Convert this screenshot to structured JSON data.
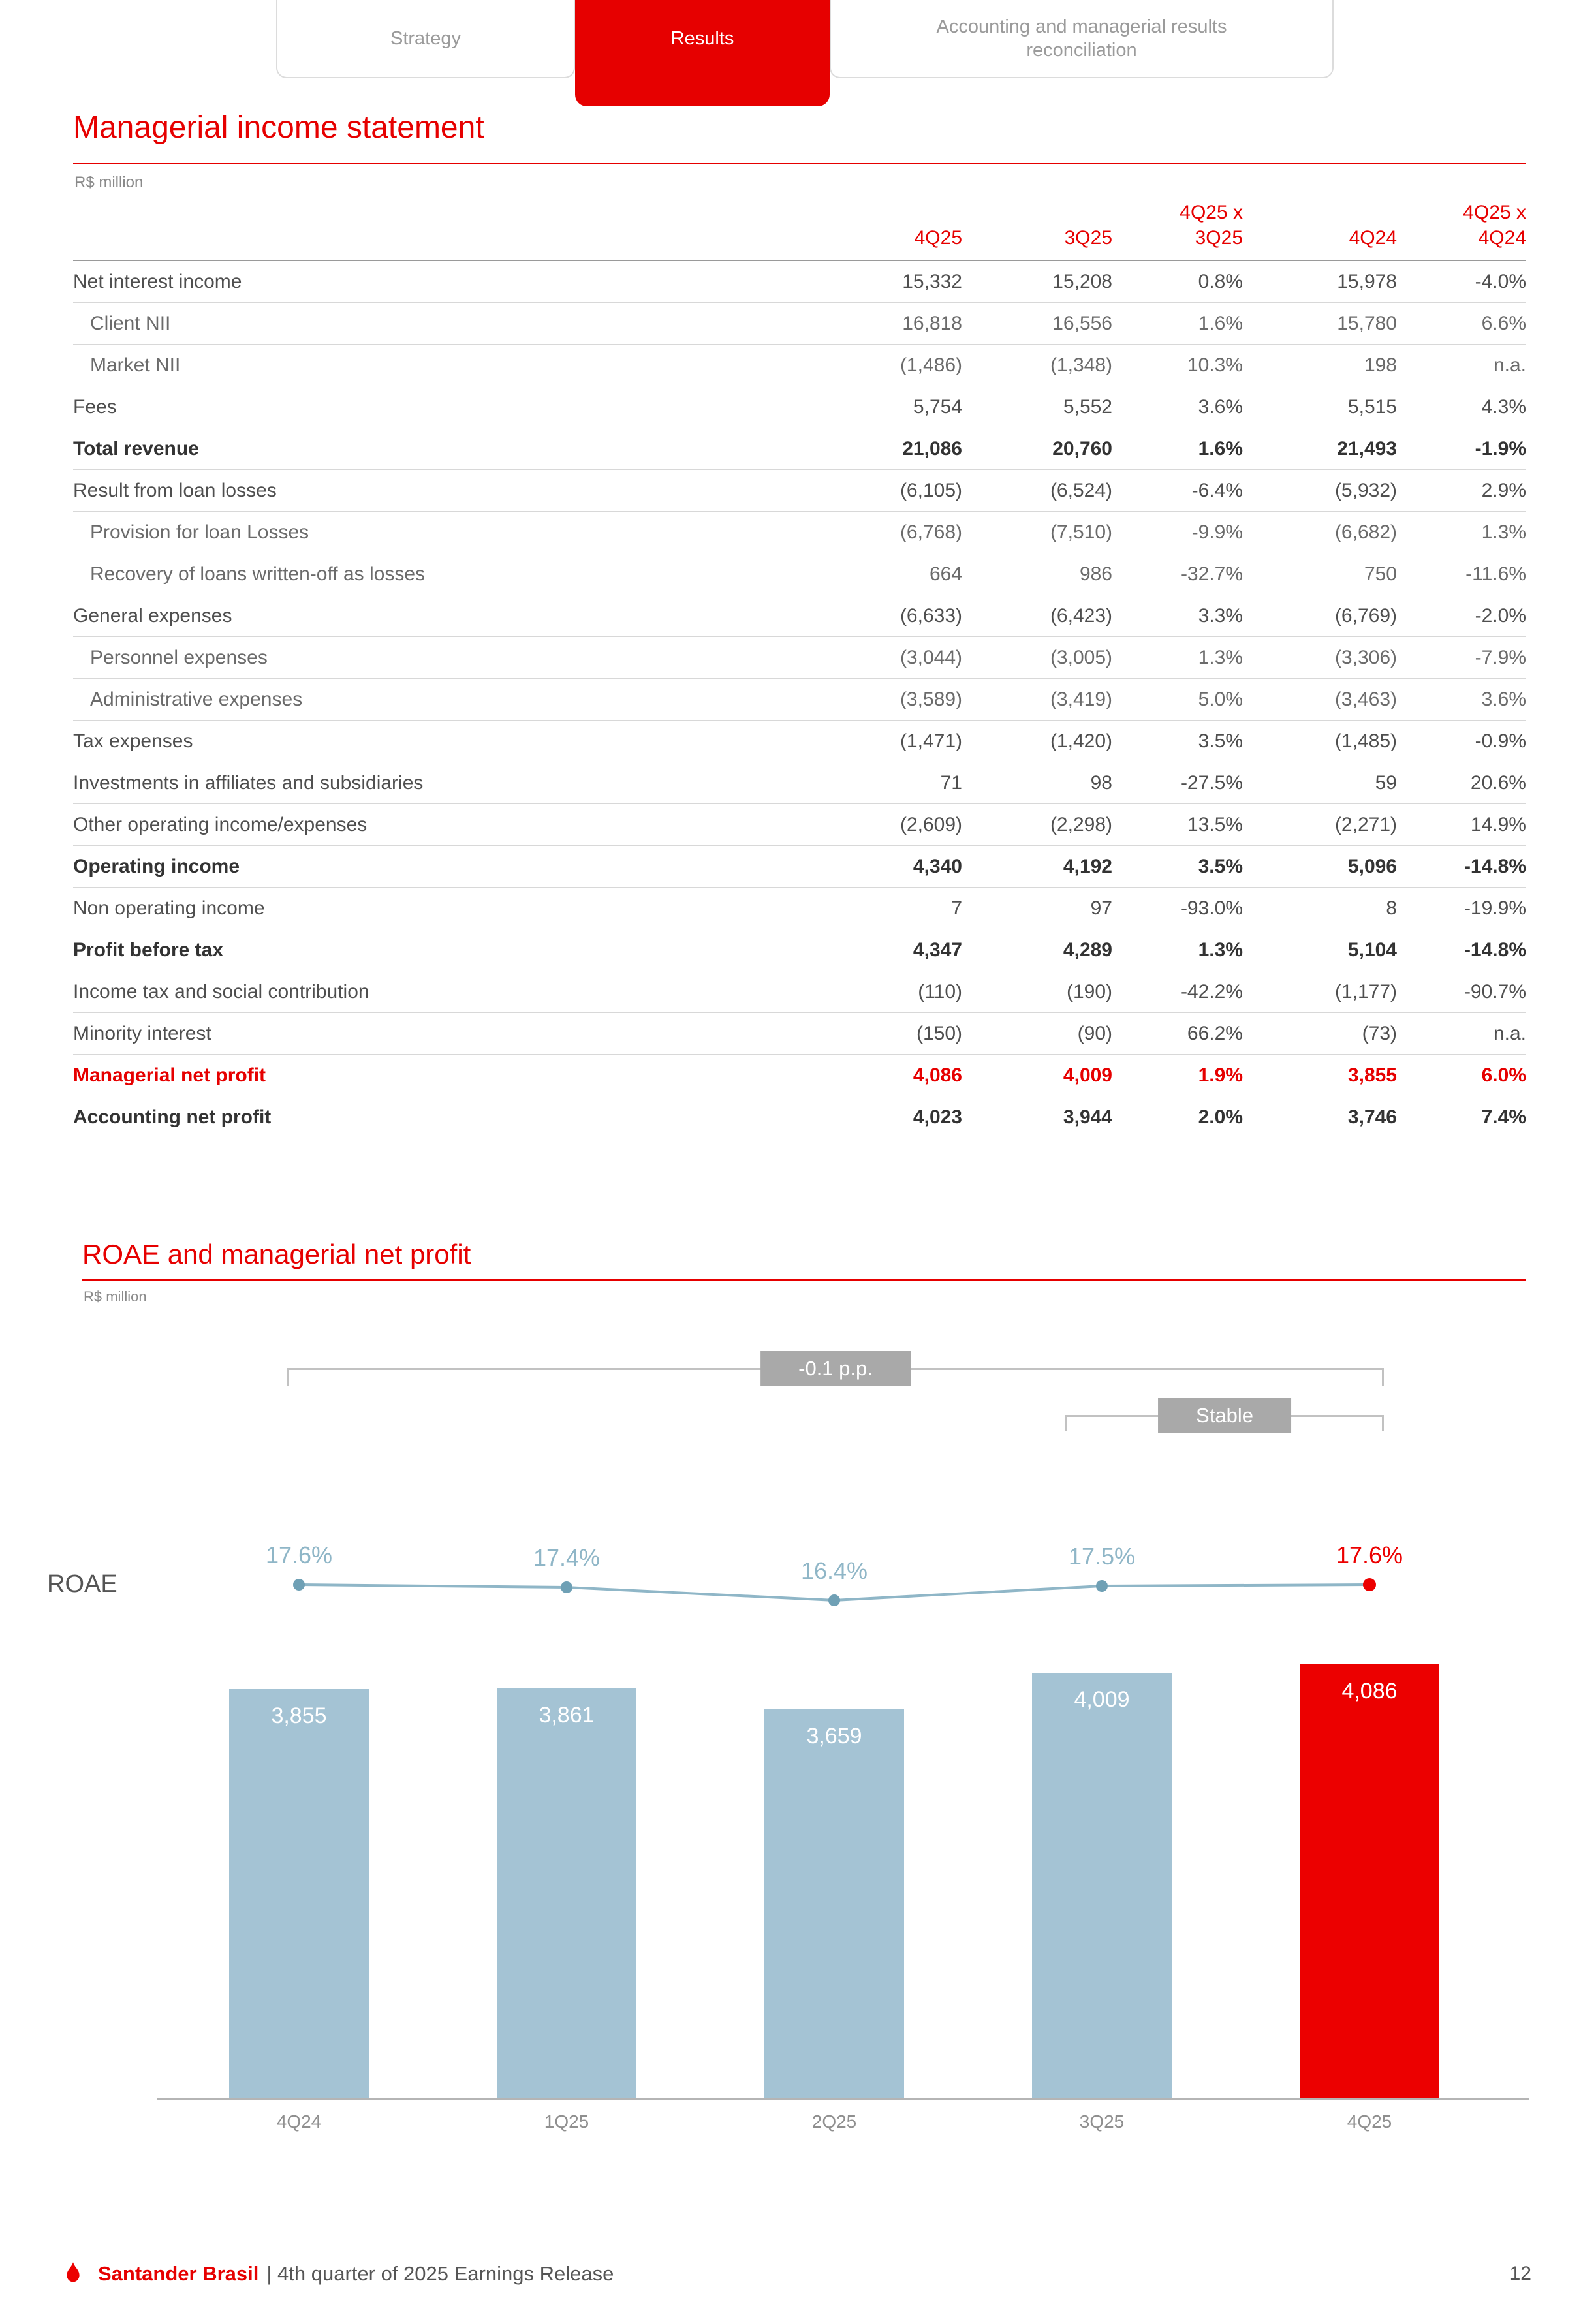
{
  "tabs": [
    {
      "label": "Strategy",
      "active": false
    },
    {
      "label": "Results",
      "active": true
    },
    {
      "label": "Accounting and managerial results reconciliation",
      "active": false
    }
  ],
  "income_statement": {
    "title": "Managerial income statement",
    "unit": "R$ million",
    "columns": [
      "4Q25",
      "3Q25",
      "4Q25 x\n3Q25",
      "4Q24",
      "4Q25 x\n4Q24"
    ],
    "rows": [
      {
        "label": "Net interest income",
        "style": "normal",
        "values": [
          "15,332",
          "15,208",
          "0.8%",
          "15,978",
          "-4.0%"
        ]
      },
      {
        "label": "Client NII",
        "style": "sub",
        "values": [
          "16,818",
          "16,556",
          "1.6%",
          "15,780",
          "6.6%"
        ]
      },
      {
        "label": "Market NII",
        "style": "sub",
        "values": [
          "(1,486)",
          "(1,348)",
          "10.3%",
          "198",
          "n.a."
        ]
      },
      {
        "label": "Fees",
        "style": "normal",
        "values": [
          "5,754",
          "5,552",
          "3.6%",
          "5,515",
          "4.3%"
        ]
      },
      {
        "label": "Total revenue",
        "style": "bold",
        "values": [
          "21,086",
          "20,760",
          "1.6%",
          "21,493",
          "-1.9%"
        ]
      },
      {
        "label": "Result from loan losses",
        "style": "normal",
        "values": [
          "(6,105)",
          "(6,524)",
          "-6.4%",
          "(5,932)",
          "2.9%"
        ]
      },
      {
        "label": "Provision for loan Losses",
        "style": "sub",
        "values": [
          "(6,768)",
          "(7,510)",
          "-9.9%",
          "(6,682)",
          "1.3%"
        ]
      },
      {
        "label": "Recovery of loans written-off as losses",
        "style": "sub",
        "values": [
          "664",
          "986",
          "-32.7%",
          "750",
          "-11.6%"
        ]
      },
      {
        "label": "General expenses",
        "style": "normal",
        "values": [
          "(6,633)",
          "(6,423)",
          "3.3%",
          "(6,769)",
          "-2.0%"
        ]
      },
      {
        "label": "Personnel expenses",
        "style": "sub",
        "values": [
          "(3,044)",
          "(3,005)",
          "1.3%",
          "(3,306)",
          "-7.9%"
        ]
      },
      {
        "label": "Administrative expenses",
        "style": "sub",
        "values": [
          "(3,589)",
          "(3,419)",
          "5.0%",
          "(3,463)",
          "3.6%"
        ]
      },
      {
        "label": "Tax expenses",
        "style": "normal",
        "values": [
          "(1,471)",
          "(1,420)",
          "3.5%",
          "(1,485)",
          "-0.9%"
        ]
      },
      {
        "label": "Investments in affiliates and subsidiaries",
        "style": "normal",
        "values": [
          "71",
          "98",
          "-27.5%",
          "59",
          "20.6%"
        ]
      },
      {
        "label": "Other operating income/expenses",
        "style": "normal",
        "values": [
          "(2,609)",
          "(2,298)",
          "13.5%",
          "(2,271)",
          "14.9%"
        ]
      },
      {
        "label": "Operating income",
        "style": "bold",
        "values": [
          "4,340",
          "4,192",
          "3.5%",
          "5,096",
          "-14.8%"
        ]
      },
      {
        "label": "Non operating income",
        "style": "normal",
        "values": [
          "7",
          "97",
          "-93.0%",
          "8",
          "-19.9%"
        ]
      },
      {
        "label": "Profit before tax",
        "style": "bold",
        "values": [
          "4,347",
          "4,289",
          "1.3%",
          "5,104",
          "-14.8%"
        ]
      },
      {
        "label": "Income tax and social contribution",
        "style": "normal",
        "values": [
          "(110)",
          "(190)",
          "-42.2%",
          "(1,177)",
          "-90.7%"
        ]
      },
      {
        "label": "Minority interest",
        "style": "normal",
        "values": [
          "(150)",
          "(90)",
          "66.2%",
          "(73)",
          "n.a."
        ]
      },
      {
        "label": "Managerial net profit",
        "style": "red",
        "values": [
          "4,086",
          "4,009",
          "1.9%",
          "3,855",
          "6.0%"
        ]
      },
      {
        "label": "Accounting net profit",
        "style": "bold",
        "values": [
          "4,023",
          "3,944",
          "2.0%",
          "3,746",
          "7.4%"
        ]
      }
    ]
  },
  "roae_section": {
    "title": "ROAE and managerial net profit",
    "unit": "R$ million",
    "axis_label": "ROAE"
  },
  "chart_data": {
    "type": "bar",
    "categories": [
      "4Q24",
      "1Q25",
      "2Q25",
      "3Q25",
      "4Q25"
    ],
    "series": [
      {
        "name": "Managerial net profit",
        "type": "bar",
        "values": [
          3855,
          3861,
          3659,
          4009,
          4086
        ],
        "labels": [
          "3,855",
          "3,861",
          "3,659",
          "4,009",
          "4,086"
        ]
      },
      {
        "name": "ROAE",
        "type": "line",
        "values": [
          17.6,
          17.4,
          16.4,
          17.5,
          17.6
        ],
        "labels": [
          "17.6%",
          "17.4%",
          "16.4%",
          "17.5%",
          "17.6%"
        ]
      }
    ],
    "highlight_index": 4,
    "annotations": [
      {
        "label": "-0.1 p.p.",
        "span": [
          "4Q24",
          "4Q25"
        ]
      },
      {
        "label": "Stable",
        "span": [
          "3Q25",
          "4Q25"
        ]
      }
    ],
    "colors": {
      "bar": "#A4C3D4",
      "bar_highlight": "#EC0000",
      "line": "#8FB6C7",
      "point": "#6FA0B5",
      "roae_label": "#8FB6C7",
      "roae_label_highlight": "#EC0000"
    },
    "title": "ROAE and managerial net profit",
    "xlabel": "",
    "ylabel": "R$ million",
    "grid": false,
    "legend_position": "none"
  },
  "footer": {
    "brand": "Santander Brasil",
    "title": "| 4th quarter of 2025 Earnings Release",
    "page_number": "12"
  }
}
